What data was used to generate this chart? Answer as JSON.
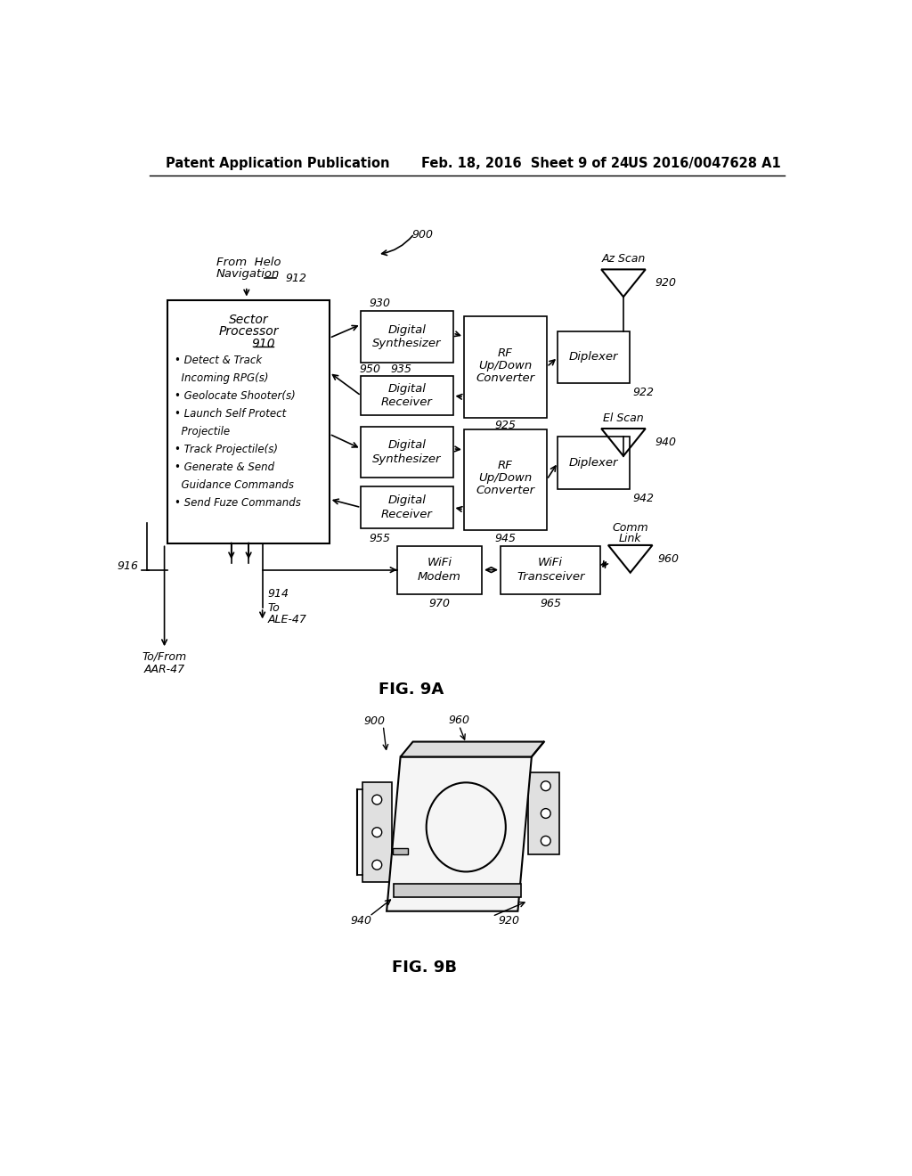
{
  "header_left": "Patent Application Publication",
  "header_mid": "Feb. 18, 2016  Sheet 9 of 24",
  "header_right": "US 2016/0047628 A1",
  "fig9a_label": "FIG. 9A",
  "fig9b_label": "FIG. 9B",
  "bg_color": "#ffffff",
  "box_color": "#ffffff",
  "box_edge": "#000000",
  "text_color": "#000000",
  "line_color": "#000000"
}
